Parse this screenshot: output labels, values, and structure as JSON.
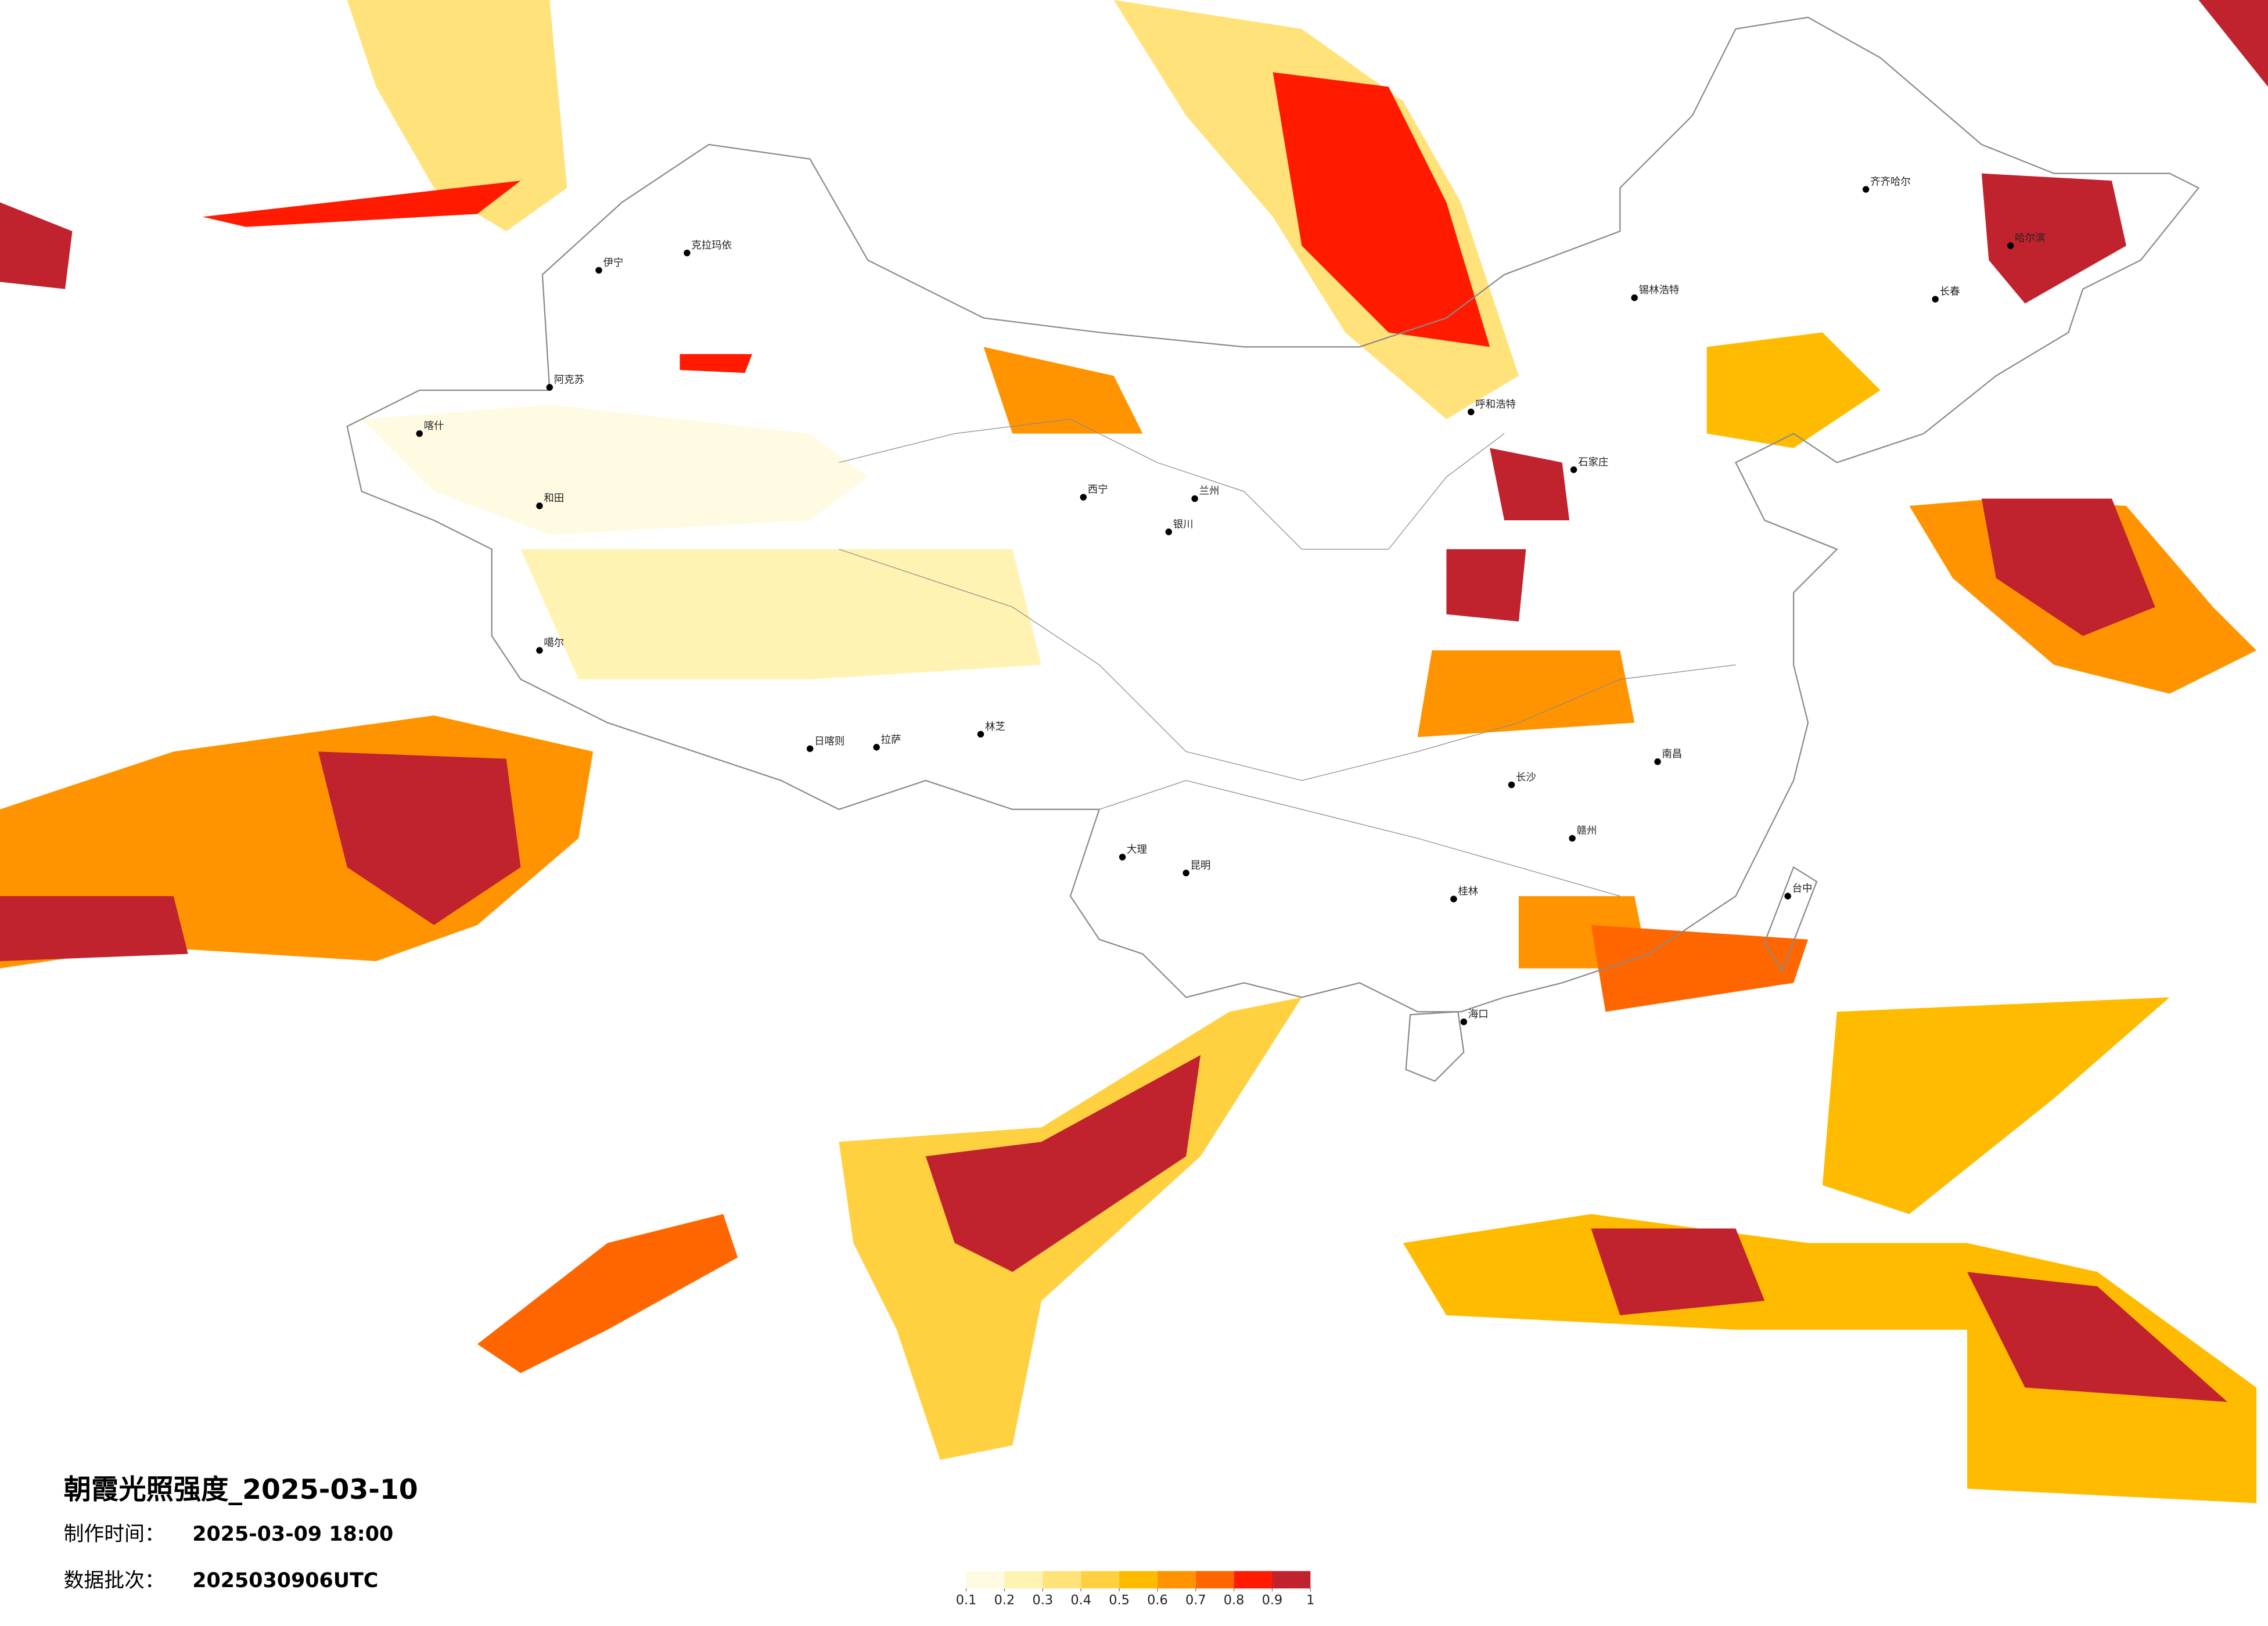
{
  "title": "朝霞光照强度_2025-03-10",
  "issue_label": "制作时间：",
  "issue_time": "2025-03-09 18:00",
  "batch_label": "数据批次：",
  "batch": "2025030906UTC",
  "legend": {
    "colors": [
      "#fffbe3",
      "#fff3b3",
      "#ffe27a",
      "#ffd040",
      "#ffbb00",
      "#ff9400",
      "#ff6600",
      "#ff1a00",
      "#c0222e"
    ],
    "ticks": [
      0.1,
      0.2,
      0.3,
      0.4,
      0.5,
      0.6,
      0.7,
      0.8,
      0.9,
      1
    ]
  },
  "cities": [
    "克拉玛依",
    "伊宁",
    "阿克苏",
    "喀什",
    "和田",
    "噶尔",
    "日喀则",
    "拉萨",
    "林芝",
    "西宁",
    "兰州",
    "银川",
    "呼和浩特",
    "石家庄",
    "齐齐哈尔",
    "哈尔滨",
    "长春",
    "大理",
    "昆明",
    "桂林",
    "南昌",
    "长沙",
    "赣州",
    "海口",
    "台中",
    "锡林浩特"
  ]
}
